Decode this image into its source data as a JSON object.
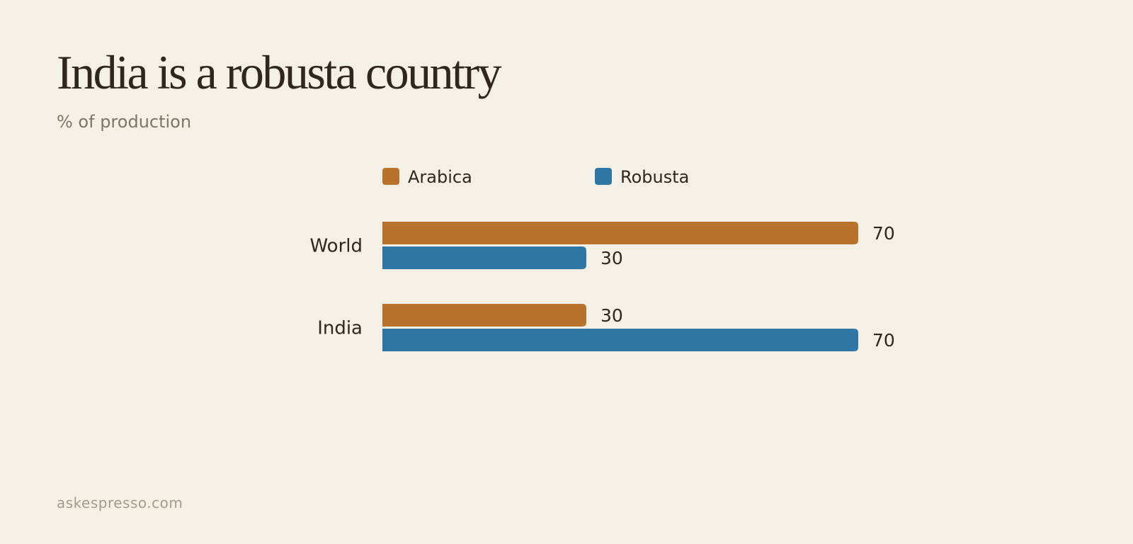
{
  "title": "India is a robusta country",
  "subtitle": "% of production",
  "footer": "askespresso.com",
  "colors": {
    "background": "#f5f0e6",
    "text": "#2f2620",
    "subtitle": "#7e7569",
    "footer": "#a39a8e"
  },
  "chart_data": {
    "type": "bar",
    "orientation": "horizontal",
    "title": "India is a robusta country",
    "subtitle": "% of production",
    "categories": [
      "World",
      "India"
    ],
    "series": [
      {
        "name": "Arabica",
        "color": "#b8722b",
        "values": [
          70,
          30
        ]
      },
      {
        "name": "Robusta",
        "color": "#2e76a4",
        "values": [
          30,
          70
        ]
      }
    ],
    "xlim": [
      0,
      70
    ],
    "grid": false,
    "legend": "top-left",
    "data_labels": true
  }
}
